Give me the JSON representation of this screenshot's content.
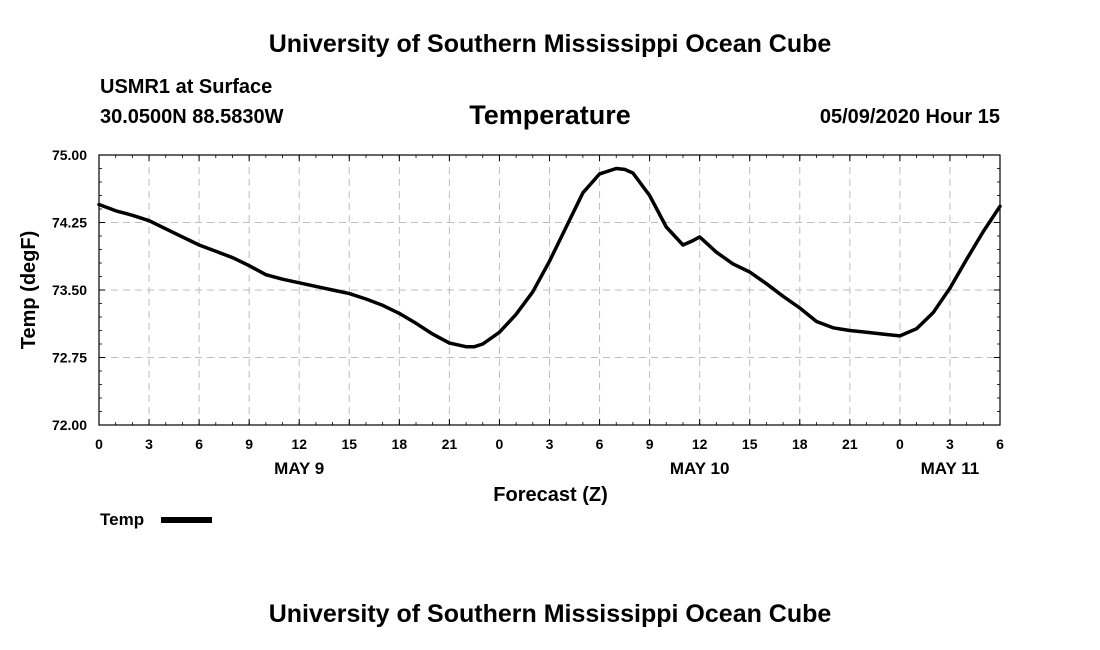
{
  "header": {
    "title": "University of Southern Mississippi Ocean Cube",
    "station": "USMR1 at Surface",
    "location": "30.0500N 88.5830W",
    "variable": "Temperature",
    "date": "05/09/2020 Hour 15"
  },
  "footer": {
    "title": "University of Southern Mississippi Ocean Cube"
  },
  "legend": {
    "label": "Temp",
    "color": "#000000"
  },
  "chart_data": {
    "type": "line",
    "title": "Temperature",
    "xlabel": "Forecast (Z)",
    "ylabel": "Temp (degF)",
    "xlim": [
      0,
      54
    ],
    "ylim": [
      72.0,
      75.0
    ],
    "grid": true,
    "y_ticks": [
      "72.00",
      "72.75",
      "73.50",
      "74.25",
      "75.00"
    ],
    "x_tick_values": [
      0,
      3,
      6,
      9,
      12,
      15,
      18,
      21,
      24,
      27,
      30,
      33,
      36,
      39,
      42,
      45,
      48,
      51,
      54
    ],
    "x_tick_labels": [
      "0",
      "3",
      "6",
      "9",
      "12",
      "15",
      "18",
      "21",
      "0",
      "3",
      "6",
      "9",
      "12",
      "15",
      "18",
      "21",
      "0",
      "3",
      "6"
    ],
    "day_labels": [
      {
        "x": 12,
        "label": "MAY 9"
      },
      {
        "x": 36,
        "label": "MAY 10"
      },
      {
        "x": 51,
        "label": "MAY 11"
      }
    ],
    "series": [
      {
        "name": "Temp",
        "color": "#000000",
        "x": [
          0,
          1,
          2,
          3,
          4,
          5,
          6,
          7,
          8,
          9,
          10,
          11,
          12,
          13,
          14,
          15,
          16,
          17,
          18,
          19,
          20,
          21,
          22,
          22.5,
          23,
          24,
          25,
          26,
          27,
          28,
          29,
          30,
          31,
          31.5,
          32,
          33,
          34,
          35,
          35.5,
          36,
          37,
          38,
          39,
          40,
          41,
          42,
          43,
          44,
          45,
          46,
          47,
          48,
          49,
          50,
          51,
          52,
          53,
          54
        ],
        "values": [
          74.45,
          74.38,
          74.33,
          74.27,
          74.18,
          74.09,
          74.0,
          73.93,
          73.86,
          73.77,
          73.67,
          73.62,
          73.58,
          73.54,
          73.5,
          73.46,
          73.4,
          73.33,
          73.24,
          73.13,
          73.01,
          72.91,
          72.87,
          72.87,
          72.9,
          73.03,
          73.23,
          73.48,
          73.82,
          74.2,
          74.58,
          74.79,
          74.85,
          74.84,
          74.8,
          74.55,
          74.2,
          74.0,
          74.04,
          74.09,
          73.92,
          73.79,
          73.7,
          73.57,
          73.43,
          73.3,
          73.15,
          73.08,
          73.05,
          73.03,
          73.01,
          72.99,
          73.07,
          73.25,
          73.52,
          73.84,
          74.15,
          74.43
        ]
      }
    ]
  }
}
